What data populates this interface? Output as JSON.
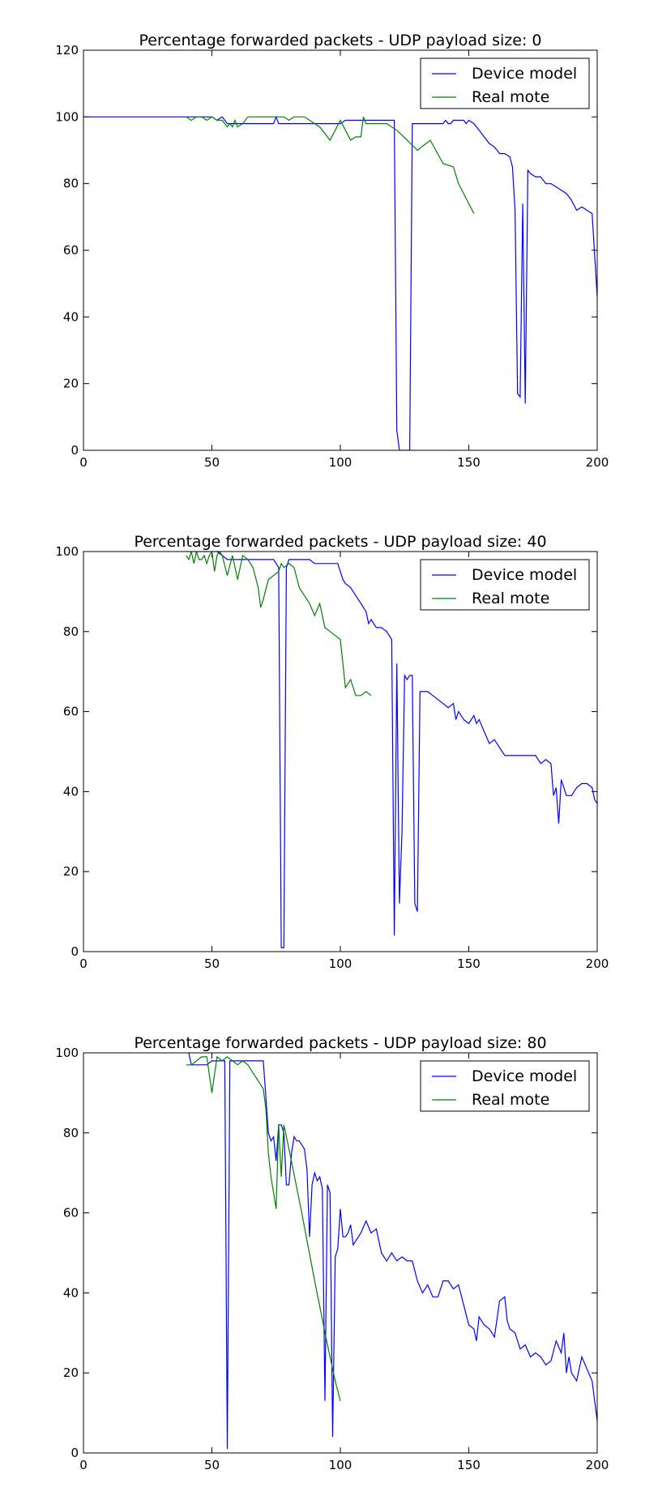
{
  "chart_data": [
    {
      "type": "line",
      "title": "Percentage forwarded packets - UDP payload size: 0",
      "xlim": [
        0,
        200
      ],
      "ylim": [
        0,
        120
      ],
      "xticks": [
        0,
        50,
        100,
        150,
        200
      ],
      "yticks": [
        0,
        20,
        40,
        60,
        80,
        100,
        120
      ],
      "legend": "top-right",
      "series": [
        {
          "name": "Device model",
          "color": "#0000ff",
          "x": [
            0,
            40,
            42,
            44,
            46,
            48,
            50,
            52,
            54,
            56,
            58,
            60,
            62,
            64,
            66,
            68,
            70,
            72,
            74,
            75,
            76,
            77,
            78,
            80,
            82,
            84,
            86,
            88,
            90,
            92,
            94,
            96,
            98,
            100,
            102,
            104,
            106,
            108,
            110,
            112,
            114,
            116,
            118,
            120,
            121,
            122,
            123,
            124,
            126,
            127,
            128,
            130,
            132,
            134,
            136,
            138,
            140,
            141,
            142,
            143,
            144,
            146,
            148,
            149,
            150,
            152,
            154,
            156,
            158,
            160,
            162,
            164,
            166,
            167,
            168,
            169,
            170,
            171,
            172,
            173,
            174,
            176,
            178,
            180,
            182,
            184,
            186,
            188,
            190,
            192,
            194,
            196,
            198,
            200
          ],
          "values": [
            100,
            100,
            100,
            100,
            100,
            100,
            100,
            99,
            100,
            98,
            98,
            98,
            98,
            98,
            98,
            98,
            98,
            98,
            98,
            100,
            98,
            98,
            98,
            98,
            98,
            98,
            98,
            98,
            98,
            98,
            98,
            98,
            98,
            98,
            99,
            99,
            99,
            99,
            99,
            99,
            99,
            99,
            99,
            99,
            99,
            6,
            0,
            0,
            0,
            0,
            98,
            98,
            98,
            98,
            98,
            98,
            98,
            99,
            98,
            98,
            99,
            99,
            99,
            98,
            99,
            98,
            96,
            94,
            92,
            91,
            89,
            89,
            88,
            85,
            72,
            17,
            16,
            74,
            14,
            84,
            83,
            82,
            82,
            80,
            80,
            79,
            78,
            77,
            75,
            72,
            73,
            72,
            71,
            46
          ]
        },
        {
          "name": "Real mote",
          "color": "#008000",
          "x": [
            40,
            42,
            44,
            46,
            48,
            50,
            52,
            54,
            56,
            57,
            58,
            59,
            60,
            62,
            64,
            66,
            68,
            70,
            72,
            74,
            76,
            78,
            80,
            82,
            84,
            86,
            88,
            90,
            92,
            94,
            96,
            98,
            100,
            102,
            104,
            106,
            108,
            109,
            110,
            112,
            114,
            116,
            118,
            122,
            126,
            130,
            135,
            140,
            144,
            146,
            148,
            150,
            152
          ],
          "values": [
            100,
            99,
            100,
            100,
            99,
            100,
            99,
            99,
            97,
            98,
            97,
            99,
            97,
            98,
            100,
            100,
            100,
            100,
            100,
            100,
            100,
            100,
            99,
            100,
            100,
            100,
            99,
            98,
            97,
            95,
            93,
            96,
            99,
            96,
            93,
            94,
            94,
            100,
            98,
            98,
            98,
            98,
            98,
            96,
            93,
            90,
            93,
            86,
            85,
            80,
            77,
            74,
            71
          ]
        }
      ]
    },
    {
      "type": "line",
      "title": "Percentage forwarded packets - UDP payload size: 40",
      "xlim": [
        0,
        200
      ],
      "ylim": [
        0,
        100
      ],
      "xticks": [
        0,
        50,
        100,
        150,
        200
      ],
      "yticks": [
        0,
        20,
        40,
        60,
        80,
        100
      ],
      "legend": "top-right",
      "series": [
        {
          "name": "Device model",
          "color": "#0000ff",
          "x": [
            40,
            44,
            48,
            52,
            54,
            56,
            58,
            60,
            62,
            64,
            66,
            68,
            70,
            72,
            74,
            75,
            76,
            77,
            78,
            79,
            80,
            82,
            84,
            86,
            88,
            90,
            92,
            94,
            96,
            98,
            99,
            100,
            101,
            102,
            104,
            106,
            108,
            109,
            110,
            111,
            112,
            114,
            116,
            118,
            120,
            121,
            122,
            123,
            124,
            125,
            126,
            127,
            128,
            129,
            130,
            131,
            132,
            134,
            136,
            138,
            140,
            142,
            144,
            145,
            146,
            148,
            150,
            152,
            153,
            154,
            156,
            158,
            160,
            162,
            164,
            166,
            168,
            170,
            172,
            174,
            176,
            178,
            180,
            182,
            183,
            184,
            185,
            186,
            188,
            190,
            192,
            194,
            196,
            198,
            199,
            200
          ],
          "values": [
            100,
            100,
            100,
            100,
            99,
            98,
            98,
            98,
            98,
            98,
            98,
            98,
            98,
            98,
            98,
            97,
            96,
            1,
            1,
            96,
            98,
            98,
            98,
            98,
            98,
            97,
            97,
            97,
            97,
            97,
            97,
            95,
            93,
            92,
            91,
            89,
            87,
            86,
            85,
            82,
            83,
            81,
            81,
            80,
            78,
            4,
            72,
            12,
            30,
            69,
            68,
            69,
            69,
            12,
            10,
            65,
            65,
            65,
            64,
            63,
            62,
            61,
            62,
            58,
            60,
            58,
            57,
            59,
            57,
            58,
            55,
            52,
            53,
            51,
            49,
            49,
            49,
            49,
            49,
            49,
            49,
            47,
            48,
            47,
            39,
            41,
            32,
            43,
            39,
            39,
            41,
            42,
            42,
            41,
            38,
            37
          ]
        },
        {
          "name": "Real mote",
          "color": "#008000",
          "x": [
            40,
            41,
            42,
            43,
            44,
            45,
            46,
            47,
            48,
            49,
            50,
            51,
            52,
            53,
            54,
            56,
            58,
            60,
            62,
            64,
            66,
            68,
            69,
            70,
            72,
            74,
            76,
            77,
            78,
            80,
            82,
            84,
            86,
            88,
            90,
            92,
            94,
            96,
            98,
            100,
            102,
            104,
            106,
            108,
            110,
            112
          ],
          "values": [
            99,
            98,
            100,
            97,
            100,
            98,
            98,
            99,
            97,
            99,
            100,
            95,
            99,
            100,
            99,
            94,
            99,
            93,
            99,
            98,
            96,
            91,
            86,
            88,
            93,
            94,
            95,
            97,
            96,
            97,
            96,
            91,
            89,
            87,
            84,
            87,
            81,
            80,
            79,
            78,
            66,
            68,
            64,
            64,
            65,
            64
          ]
        }
      ]
    },
    {
      "type": "line",
      "title": "Percentage forwarded packets - UDP payload size: 80",
      "xlim": [
        0,
        200
      ],
      "ylim": [
        0,
        100
      ],
      "xticks": [
        0,
        50,
        100,
        150,
        200
      ],
      "yticks": [
        0,
        20,
        40,
        60,
        80,
        100
      ],
      "legend": "top-right",
      "series": [
        {
          "name": "Device model",
          "color": "#0000ff",
          "x": [
            41,
            42,
            44,
            46,
            48,
            50,
            52,
            54,
            55,
            56,
            57,
            58,
            60,
            62,
            64,
            66,
            68,
            70,
            71,
            72,
            73,
            74,
            75,
            76,
            77,
            78,
            79,
            80,
            81,
            82,
            83,
            84,
            85,
            86,
            87,
            88,
            89,
            90,
            91,
            92,
            93,
            94,
            95,
            96,
            97,
            98,
            99,
            100,
            101,
            102,
            103,
            104,
            105,
            106,
            108,
            110,
            112,
            114,
            116,
            118,
            120,
            122,
            124,
            126,
            128,
            130,
            132,
            134,
            136,
            138,
            140,
            142,
            144,
            146,
            148,
            150,
            152,
            153,
            154,
            156,
            158,
            160,
            162,
            164,
            165,
            166,
            168,
            170,
            172,
            174,
            176,
            178,
            180,
            182,
            184,
            186,
            187,
            188,
            189,
            190,
            192,
            194,
            196,
            198,
            200
          ],
          "values": [
            100,
            97,
            97,
            97,
            97,
            98,
            98,
            98,
            98,
            1,
            98,
            98,
            98,
            98,
            98,
            98,
            98,
            98,
            89,
            80,
            78,
            79,
            73,
            82,
            82,
            80,
            67,
            67,
            75,
            79,
            78,
            78,
            77,
            76,
            71,
            54,
            67,
            70,
            68,
            69,
            66,
            13,
            67,
            65,
            4,
            49,
            51,
            61,
            54,
            54,
            55,
            57,
            52,
            53,
            55,
            58,
            55,
            56,
            50,
            48,
            50,
            48,
            49,
            48,
            48,
            43,
            40,
            42,
            39,
            39,
            43,
            43,
            41,
            42,
            37,
            32,
            31,
            28,
            34,
            32,
            31,
            29,
            38,
            39,
            33,
            31,
            30,
            26,
            27,
            24,
            25,
            24,
            22,
            23,
            28,
            25,
            30,
            20,
            24,
            20,
            18,
            24,
            21,
            18,
            8
          ]
        },
        {
          "name": "Real mote",
          "color": "#008000",
          "x": [
            40,
            42,
            44,
            46,
            48,
            50,
            52,
            54,
            56,
            58,
            60,
            62,
            64,
            66,
            68,
            70,
            71,
            72,
            73,
            74,
            75,
            76,
            77,
            78,
            80,
            85,
            90,
            95,
            98,
            100
          ],
          "values": [
            97,
            97,
            98,
            99,
            99,
            90,
            99,
            98,
            99,
            98,
            97,
            98,
            97,
            95,
            93,
            91,
            86,
            75,
            69,
            65,
            61,
            82,
            69,
            82,
            76,
            60,
            43,
            27,
            18,
            13
          ]
        }
      ]
    }
  ]
}
